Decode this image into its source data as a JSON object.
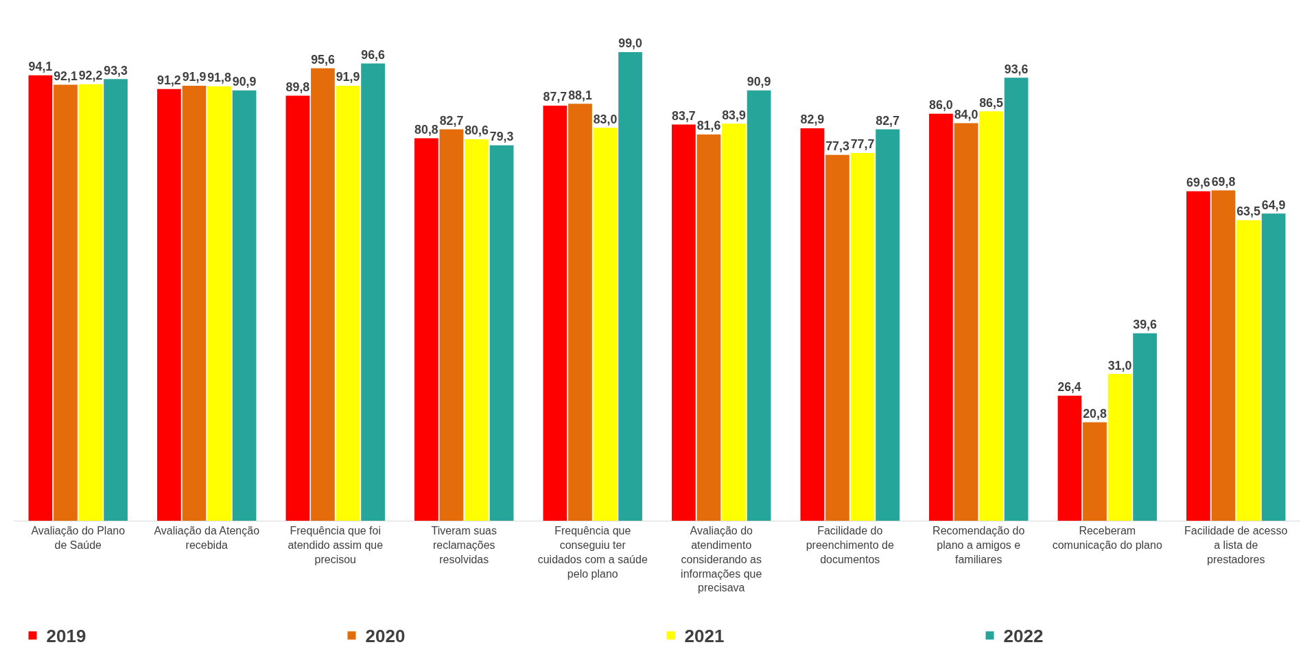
{
  "chart_data": {
    "type": "bar",
    "categories": [
      "Avaliação do Plano de Saúde",
      "Avaliação da Atenção recebida",
      "Frequência que foi atendido assim que precisou",
      "Tiveram suas reclamações resolvidas",
      "Frequência que conseguiu ter cuidados com a saúde pelo plano",
      "Avaliação do atendimento considerando as informações que precisava",
      "Facilidade do preenchimento de documentos",
      "Recomendação do plano a amigos e familiares",
      "Receberam comunicação do plano",
      "Facilidade de acesso a lista de prestadores"
    ],
    "series": [
      {
        "name": "2019",
        "color": "#ff0000",
        "values": [
          94.1,
          91.2,
          89.8,
          80.8,
          87.7,
          83.7,
          82.9,
          86.0,
          26.4,
          69.6
        ],
        "value_labels": [
          "94,1",
          "91,2",
          "89,8",
          "80,8",
          "87,7",
          "83,7",
          "82,9",
          "86,0",
          "26,4",
          "69,6"
        ]
      },
      {
        "name": "2020",
        "color": "#e46c0a",
        "values": [
          92.1,
          91.9,
          95.6,
          82.7,
          88.1,
          81.6,
          77.3,
          84.0,
          20.8,
          69.8
        ],
        "value_labels": [
          "92,1",
          "91,9",
          "95,6",
          "82,7",
          "88,1",
          "81,6",
          "77,3",
          "84,0",
          "20,8",
          "69,8"
        ]
      },
      {
        "name": "2021",
        "color": "#ffff00",
        "values": [
          92.2,
          91.8,
          91.9,
          80.6,
          83.0,
          83.9,
          77.7,
          86.5,
          31.0,
          63.5
        ],
        "value_labels": [
          "92,2",
          "91,8",
          "91,9",
          "80,6",
          "83,0",
          "83,9",
          "77,7",
          "86,5",
          "31,0",
          "63,5"
        ]
      },
      {
        "name": "2022",
        "color": "#26a69a",
        "values": [
          93.3,
          90.9,
          96.6,
          79.3,
          99.0,
          90.9,
          82.7,
          93.6,
          39.6,
          64.9
        ],
        "value_labels": [
          "93,3",
          "90,9",
          "96,6",
          "79,3",
          "99,0",
          "90,9",
          "82,7",
          "93,6",
          "39,6",
          "64,9"
        ]
      }
    ],
    "legend": "bottom"
  }
}
